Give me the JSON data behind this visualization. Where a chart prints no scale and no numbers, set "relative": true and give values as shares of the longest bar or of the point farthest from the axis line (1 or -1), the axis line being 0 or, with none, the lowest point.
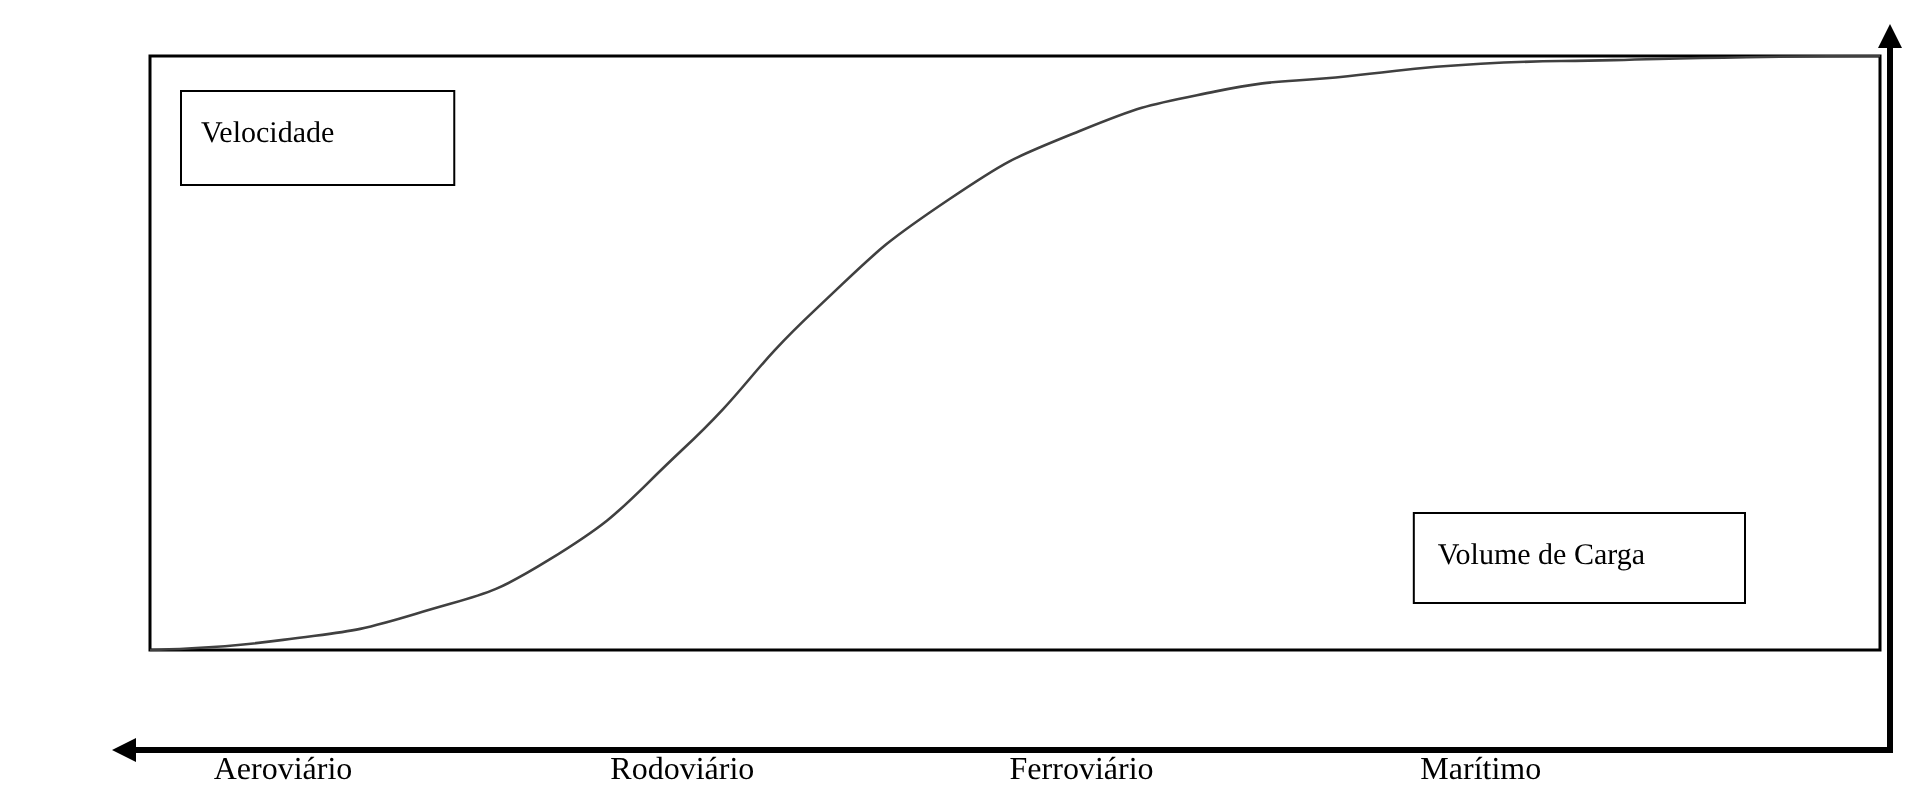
{
  "chart_data": {
    "type": "line",
    "relative": true,
    "color": "#404040",
    "categories": [
      null,
      "Aeroviário",
      null,
      null,
      "Rodoviário",
      null,
      null,
      "Ferroviário",
      null,
      null,
      "Marítimo",
      null,
      null,
      null
    ],
    "values": [
      0,
      0.017,
      0.061,
      0.152,
      0.337,
      0.573,
      0.758,
      0.875,
      0.94,
      0.966,
      0.987,
      0.993,
      0.998,
      1
    ],
    "annotations": [
      "Velocidade",
      "Volume de Carga"
    ]
  }
}
